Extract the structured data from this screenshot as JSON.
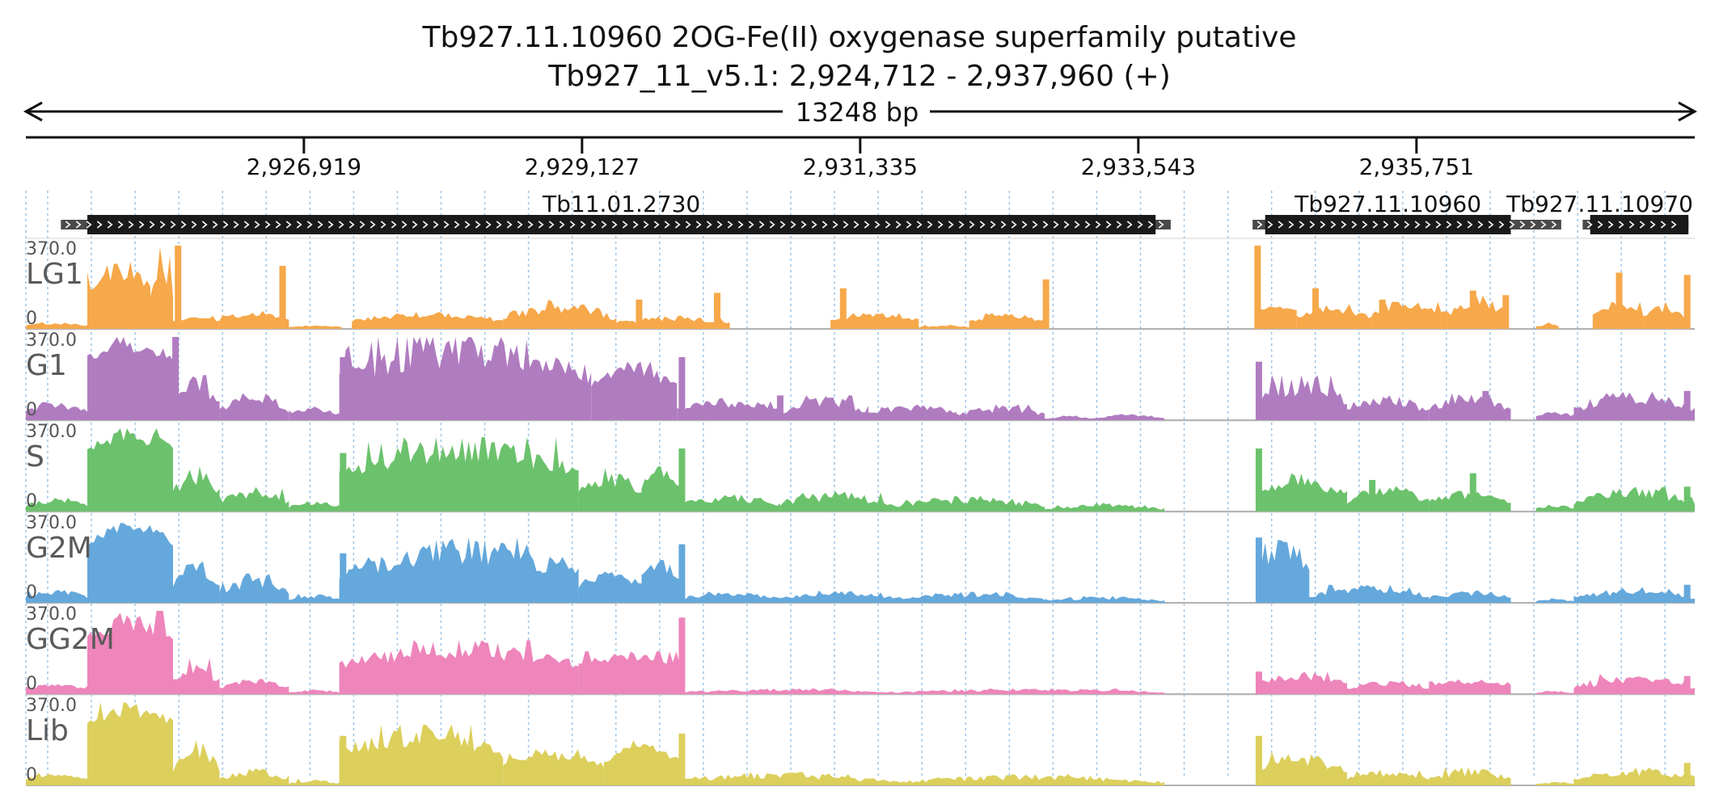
{
  "header": {
    "gene_title": "Tb927.11.10960  2OG-Fe(II) oxygenase superfamily  putative",
    "locus": "Tb927_11_v5.1: 2,924,712 - 2,937,960 (+)"
  },
  "ruler": {
    "span_label": "13248 bp",
    "ticks": [
      {
        "pos": 2926919,
        "label": "2,926,919"
      },
      {
        "pos": 2929127,
        "label": "2,929,127"
      },
      {
        "pos": 2931335,
        "label": "2,931,335"
      },
      {
        "pos": 2933543,
        "label": "2,933,543"
      },
      {
        "pos": 2935751,
        "label": "2,935,751"
      }
    ]
  },
  "genes": [
    {
      "name": "Tb11.01.2730",
      "utr_start": 2924990,
      "cds_start": 2925200,
      "cds_end": 2933680,
      "utr_end": 2933800
    },
    {
      "name": "Tb927.11.10960",
      "utr_start": 2934450,
      "cds_start": 2934550,
      "cds_end": 2936500,
      "utr_end": 2936900
    },
    {
      "name": "Tb927.11.10970",
      "utr_start": 2937070,
      "cds_start": 2937130,
      "cds_end": 2937910,
      "utr_end": 2937910
    }
  ],
  "chart_data": {
    "type": "area",
    "genome": "Tb927_11_v5.1",
    "xlim": [
      2924712,
      2937960
    ],
    "x_ticks": [
      2926919,
      2929127,
      2931335,
      2933543,
      2935751
    ],
    "ylim": [
      0,
      370
    ],
    "grid": "vertical dotted gridlines",
    "tracks": [
      {
        "name": "LG1",
        "max_label": "370.0",
        "min_label": "0",
        "color": "#f6a84a",
        "segments": [
          {
            "start": 2924712,
            "end": 2925200,
            "base": 12,
            "peak": 30
          },
          {
            "start": 2925200,
            "end": 2925700,
            "base": 160,
            "peak": 300
          },
          {
            "start": 2925700,
            "end": 2925880,
            "base": 70,
            "peak": 370
          },
          {
            "start": 2925880,
            "end": 2926250,
            "base": 30,
            "peak": 60
          },
          {
            "start": 2926250,
            "end": 2926800,
            "base": 35,
            "peak": 80
          },
          {
            "start": 2926800,
            "end": 2927220,
            "base": 8,
            "peak": 15
          },
          {
            "start": 2927300,
            "end": 2928500,
            "base": 30,
            "peak": 75
          },
          {
            "start": 2928500,
            "end": 2929400,
            "base": 35,
            "peak": 130
          },
          {
            "start": 2929400,
            "end": 2930300,
            "base": 20,
            "peak": 60
          },
          {
            "start": 2931100,
            "end": 2931800,
            "base": 35,
            "peak": 70
          },
          {
            "start": 2931800,
            "end": 2932200,
            "base": 5,
            "peak": 20
          },
          {
            "start": 2932200,
            "end": 2932800,
            "base": 30,
            "peak": 70
          },
          {
            "start": 2934480,
            "end": 2934800,
            "base": 80,
            "peak": 100
          },
          {
            "start": 2934800,
            "end": 2935400,
            "base": 40,
            "peak": 110
          },
          {
            "start": 2935400,
            "end": 2936000,
            "base": 60,
            "peak": 120
          },
          {
            "start": 2936000,
            "end": 2936480,
            "base": 50,
            "peak": 150
          },
          {
            "start": 2936700,
            "end": 2936880,
            "base": 5,
            "peak": 30
          },
          {
            "start": 2937150,
            "end": 2937550,
            "base": 60,
            "peak": 120
          },
          {
            "start": 2937550,
            "end": 2937880,
            "base": 40,
            "peak": 130
          }
        ],
        "spikes": [
          {
            "pos": 2925920,
            "value": 370
          },
          {
            "pos": 2926750,
            "value": 280
          },
          {
            "pos": 2929580,
            "value": 130
          },
          {
            "pos": 2930200,
            "value": 160
          },
          {
            "pos": 2931200,
            "value": 180
          },
          {
            "pos": 2932810,
            "value": 220
          },
          {
            "pos": 2934490,
            "value": 370
          },
          {
            "pos": 2934950,
            "value": 180
          },
          {
            "pos": 2935480,
            "value": 130
          },
          {
            "pos": 2936200,
            "value": 170
          },
          {
            "pos": 2936460,
            "value": 150
          },
          {
            "pos": 2937360,
            "value": 250
          },
          {
            "pos": 2937900,
            "value": 240
          }
        ]
      },
      {
        "name": "G1",
        "max_label": "370.0",
        "min_label": "0",
        "color": "#b07cc0",
        "segments": [
          {
            "start": 2924712,
            "end": 2925200,
            "base": 30,
            "peak": 80
          },
          {
            "start": 2925200,
            "end": 2925880,
            "base": 260,
            "peak": 370
          },
          {
            "start": 2925880,
            "end": 2926250,
            "base": 60,
            "peak": 200
          },
          {
            "start": 2926250,
            "end": 2926800,
            "base": 30,
            "peak": 130
          },
          {
            "start": 2926800,
            "end": 2927200,
            "base": 20,
            "peak": 60
          },
          {
            "start": 2927200,
            "end": 2929200,
            "base": 160,
            "peak": 370
          },
          {
            "start": 2929200,
            "end": 2929880,
            "base": 140,
            "peak": 260
          },
          {
            "start": 2929880,
            "end": 2930700,
            "base": 30,
            "peak": 100
          },
          {
            "start": 2930700,
            "end": 2931400,
            "base": 25,
            "peak": 110
          },
          {
            "start": 2931400,
            "end": 2932100,
            "base": 20,
            "peak": 80
          },
          {
            "start": 2932100,
            "end": 2932800,
            "base": 15,
            "peak": 70
          },
          {
            "start": 2932800,
            "end": 2933200,
            "base": 5,
            "peak": 20
          },
          {
            "start": 2933200,
            "end": 2933750,
            "base": 8,
            "peak": 30
          },
          {
            "start": 2934500,
            "end": 2935200,
            "base": 60,
            "peak": 200
          },
          {
            "start": 2935200,
            "end": 2935850,
            "base": 30,
            "peak": 110
          },
          {
            "start": 2935850,
            "end": 2936500,
            "base": 40,
            "peak": 120
          },
          {
            "start": 2936700,
            "end": 2937000,
            "base": 10,
            "peak": 40
          },
          {
            "start": 2937000,
            "end": 2937960,
            "base": 35,
            "peak": 140
          }
        ],
        "spikes": [
          {
            "pos": 2925900,
            "value": 370
          },
          {
            "pos": 2927230,
            "value": 280
          },
          {
            "pos": 2929920,
            "value": 280
          },
          {
            "pos": 2930700,
            "value": 110
          },
          {
            "pos": 2931100,
            "value": 100
          },
          {
            "pos": 2934500,
            "value": 260
          },
          {
            "pos": 2936300,
            "value": 130
          },
          {
            "pos": 2937900,
            "value": 130
          }
        ]
      },
      {
        "name": "S",
        "max_label": "370.0",
        "min_label": "0",
        "color": "#6cc26c",
        "segments": [
          {
            "start": 2924712,
            "end": 2925200,
            "base": 20,
            "peak": 60
          },
          {
            "start": 2925200,
            "end": 2925880,
            "base": 260,
            "peak": 370
          },
          {
            "start": 2925880,
            "end": 2926250,
            "base": 60,
            "peak": 200
          },
          {
            "start": 2926250,
            "end": 2926800,
            "base": 30,
            "peak": 110
          },
          {
            "start": 2926800,
            "end": 2927200,
            "base": 15,
            "peak": 50
          },
          {
            "start": 2927200,
            "end": 2929100,
            "base": 150,
            "peak": 330
          },
          {
            "start": 2929100,
            "end": 2929600,
            "base": 60,
            "peak": 200
          },
          {
            "start": 2929600,
            "end": 2929900,
            "base": 100,
            "peak": 210
          },
          {
            "start": 2929900,
            "end": 2930700,
            "base": 20,
            "peak": 80
          },
          {
            "start": 2930700,
            "end": 2931600,
            "base": 20,
            "peak": 90
          },
          {
            "start": 2931600,
            "end": 2932800,
            "base": 15,
            "peak": 70
          },
          {
            "start": 2932800,
            "end": 2933750,
            "base": 5,
            "peak": 40
          },
          {
            "start": 2934500,
            "end": 2935200,
            "base": 60,
            "peak": 170
          },
          {
            "start": 2935200,
            "end": 2935850,
            "base": 30,
            "peak": 120
          },
          {
            "start": 2935850,
            "end": 2936500,
            "base": 30,
            "peak": 100
          },
          {
            "start": 2936700,
            "end": 2937000,
            "base": 10,
            "peak": 30
          },
          {
            "start": 2937000,
            "end": 2937960,
            "base": 25,
            "peak": 110
          }
        ],
        "spikes": [
          {
            "pos": 2927230,
            "value": 260
          },
          {
            "pos": 2929920,
            "value": 280
          },
          {
            "pos": 2934500,
            "value": 280
          },
          {
            "pos": 2935400,
            "value": 140
          },
          {
            "pos": 2936200,
            "value": 170
          },
          {
            "pos": 2937900,
            "value": 110
          }
        ]
      },
      {
        "name": "G2M",
        "max_label": "370.0",
        "min_label": "0",
        "color": "#64a8dc",
        "segments": [
          {
            "start": 2924712,
            "end": 2925200,
            "base": 20,
            "peak": 60
          },
          {
            "start": 2925200,
            "end": 2925880,
            "base": 250,
            "peak": 370
          },
          {
            "start": 2925880,
            "end": 2926250,
            "base": 60,
            "peak": 200
          },
          {
            "start": 2926250,
            "end": 2926800,
            "base": 30,
            "peak": 130
          },
          {
            "start": 2926800,
            "end": 2927200,
            "base": 10,
            "peak": 40
          },
          {
            "start": 2927200,
            "end": 2929100,
            "base": 100,
            "peak": 290
          },
          {
            "start": 2929100,
            "end": 2929600,
            "base": 60,
            "peak": 150
          },
          {
            "start": 2929600,
            "end": 2929900,
            "base": 100,
            "peak": 190
          },
          {
            "start": 2929900,
            "end": 2930700,
            "base": 15,
            "peak": 50
          },
          {
            "start": 2930700,
            "end": 2931600,
            "base": 15,
            "peak": 60
          },
          {
            "start": 2931600,
            "end": 2932800,
            "base": 10,
            "peak": 50
          },
          {
            "start": 2932800,
            "end": 2933750,
            "base": 5,
            "peak": 30
          },
          {
            "start": 2934500,
            "end": 2934900,
            "base": 120,
            "peak": 300
          },
          {
            "start": 2934900,
            "end": 2935850,
            "base": 20,
            "peak": 80
          },
          {
            "start": 2935850,
            "end": 2936500,
            "base": 15,
            "peak": 60
          },
          {
            "start": 2936700,
            "end": 2937000,
            "base": 5,
            "peak": 20
          },
          {
            "start": 2937000,
            "end": 2937960,
            "base": 15,
            "peak": 70
          }
        ],
        "spikes": [
          {
            "pos": 2927230,
            "value": 220
          },
          {
            "pos": 2929920,
            "value": 260
          },
          {
            "pos": 2934500,
            "value": 290
          },
          {
            "pos": 2937900,
            "value": 80
          }
        ]
      },
      {
        "name": "GG2M",
        "max_label": "370.0",
        "min_label": "0",
        "color": "#ee85bb",
        "segments": [
          {
            "start": 2924712,
            "end": 2925200,
            "base": 15,
            "peak": 50
          },
          {
            "start": 2925200,
            "end": 2925880,
            "base": 220,
            "peak": 370
          },
          {
            "start": 2925880,
            "end": 2926250,
            "base": 40,
            "peak": 160
          },
          {
            "start": 2926250,
            "end": 2926800,
            "base": 20,
            "peak": 70
          },
          {
            "start": 2926800,
            "end": 2927200,
            "base": 5,
            "peak": 20
          },
          {
            "start": 2927200,
            "end": 2929100,
            "base": 110,
            "peak": 240
          },
          {
            "start": 2929100,
            "end": 2929900,
            "base": 120,
            "peak": 190
          },
          {
            "start": 2929900,
            "end": 2931600,
            "base": 5,
            "peak": 25
          },
          {
            "start": 2931600,
            "end": 2933750,
            "base": 5,
            "peak": 25
          },
          {
            "start": 2934500,
            "end": 2935200,
            "base": 40,
            "peak": 100
          },
          {
            "start": 2935200,
            "end": 2935850,
            "base": 20,
            "peak": 60
          },
          {
            "start": 2935850,
            "end": 2936500,
            "base": 30,
            "peak": 70
          },
          {
            "start": 2936700,
            "end": 2937000,
            "base": 3,
            "peak": 15
          },
          {
            "start": 2937000,
            "end": 2937960,
            "base": 20,
            "peak": 90
          }
        ],
        "spikes": [
          {
            "pos": 2927230,
            "value": 120
          },
          {
            "pos": 2929920,
            "value": 340
          },
          {
            "pos": 2934500,
            "value": 100
          },
          {
            "pos": 2937900,
            "value": 80
          }
        ]
      },
      {
        "name": "Lib",
        "max_label": "370.0",
        "min_label": "0",
        "color": "#dccf5c",
        "segments": [
          {
            "start": 2924712,
            "end": 2925200,
            "base": 20,
            "peak": 70
          },
          {
            "start": 2925200,
            "end": 2925880,
            "base": 260,
            "peak": 370
          },
          {
            "start": 2925880,
            "end": 2926250,
            "base": 50,
            "peak": 200
          },
          {
            "start": 2926250,
            "end": 2926800,
            "base": 20,
            "peak": 80
          },
          {
            "start": 2926800,
            "end": 2927200,
            "base": 5,
            "peak": 30
          },
          {
            "start": 2927200,
            "end": 2928500,
            "base": 120,
            "peak": 270
          },
          {
            "start": 2928500,
            "end": 2929300,
            "base": 80,
            "peak": 160
          },
          {
            "start": 2929300,
            "end": 2929900,
            "base": 90,
            "peak": 200
          },
          {
            "start": 2929900,
            "end": 2931600,
            "base": 10,
            "peak": 60
          },
          {
            "start": 2931600,
            "end": 2933750,
            "base": 8,
            "peak": 50
          },
          {
            "start": 2934500,
            "end": 2935200,
            "base": 50,
            "peak": 150
          },
          {
            "start": 2935200,
            "end": 2935850,
            "base": 20,
            "peak": 70
          },
          {
            "start": 2935850,
            "end": 2936500,
            "base": 20,
            "peak": 80
          },
          {
            "start": 2936700,
            "end": 2937000,
            "base": 5,
            "peak": 15
          },
          {
            "start": 2937000,
            "end": 2937960,
            "base": 20,
            "peak": 80
          }
        ],
        "spikes": [
          {
            "pos": 2927230,
            "value": 220
          },
          {
            "pos": 2929920,
            "value": 230
          },
          {
            "pos": 2934500,
            "value": 220
          },
          {
            "pos": 2937900,
            "value": 100
          }
        ]
      }
    ]
  }
}
